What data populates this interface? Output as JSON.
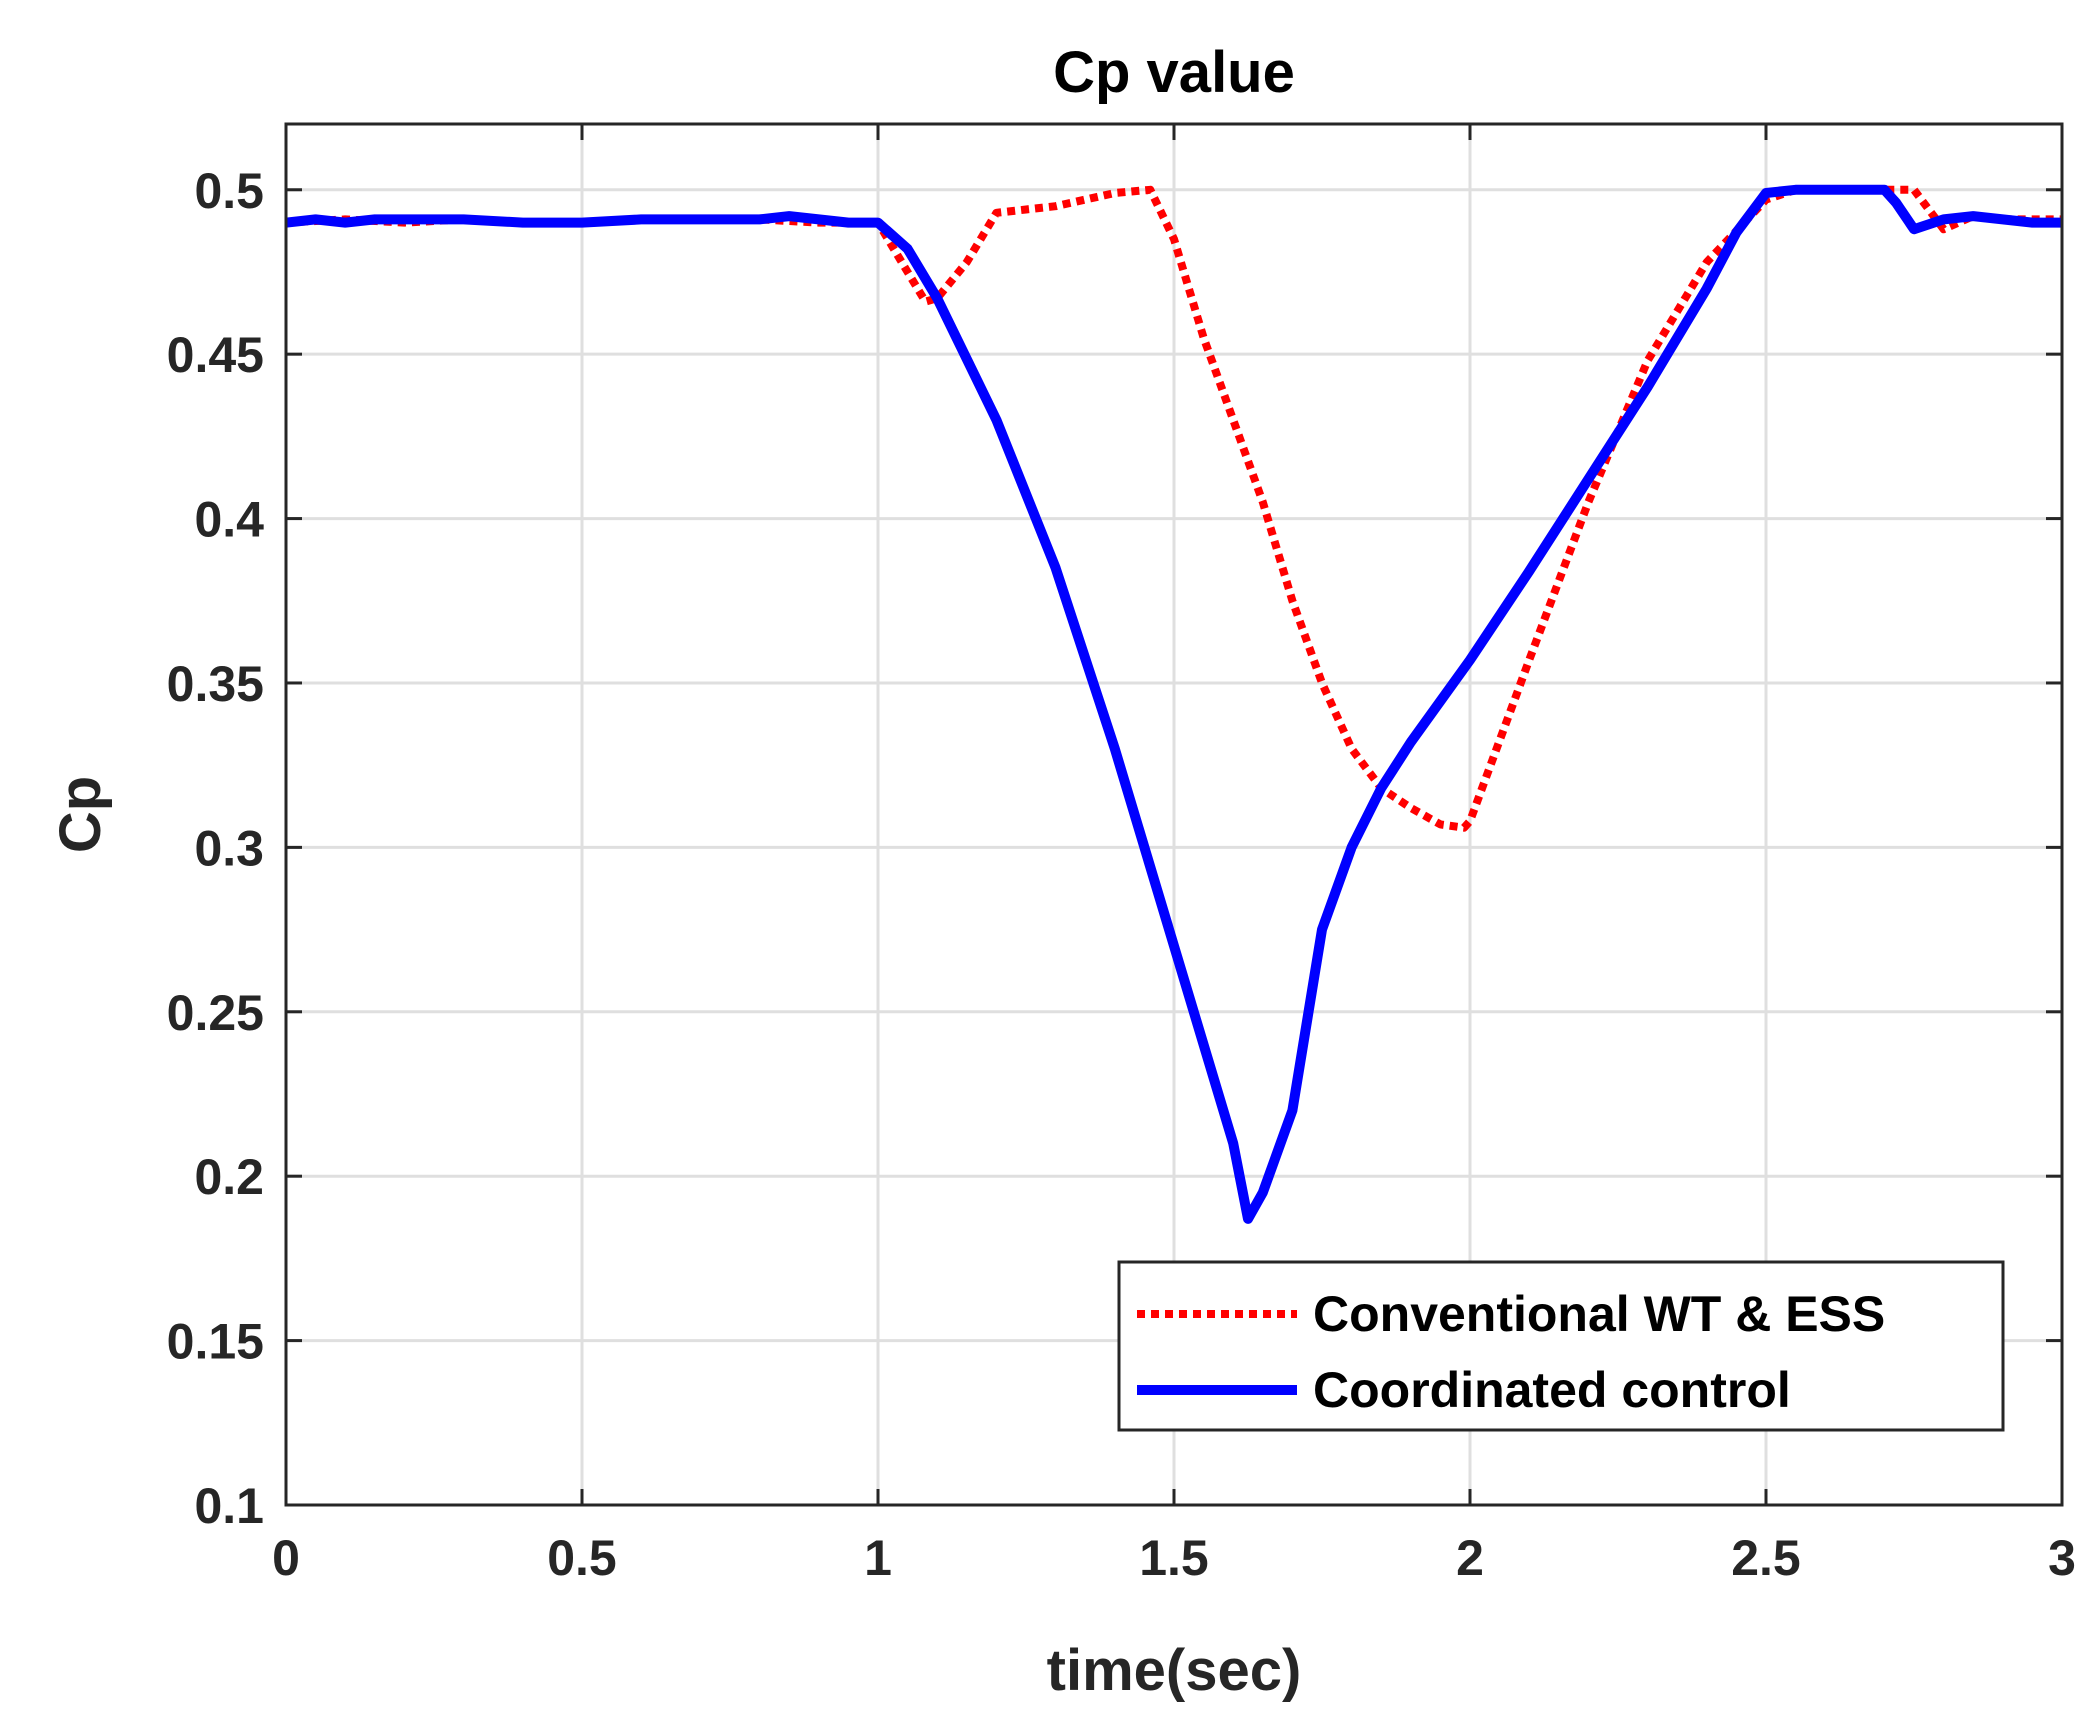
{
  "chart_data": {
    "type": "line",
    "title": "Cp value",
    "xlabel": "time(sec)",
    "ylabel": "Cp",
    "xlim": [
      0,
      3
    ],
    "ylim": [
      0.1,
      0.52
    ],
    "x_ticks": [
      0,
      0.5,
      1,
      1.5,
      2,
      2.5,
      3
    ],
    "x_tick_labels": [
      "0",
      "0.5",
      "1",
      "1.5",
      "2",
      "2.5",
      "3"
    ],
    "y_ticks": [
      0.1,
      0.15,
      0.2,
      0.25,
      0.3,
      0.35,
      0.4,
      0.45,
      0.5
    ],
    "y_tick_labels": [
      "0.1",
      "0.15",
      "0.2",
      "0.25",
      "0.3",
      "0.35",
      "0.4",
      "0.45",
      "0.5"
    ],
    "grid": true,
    "legend_position": "bottom-right",
    "series": [
      {
        "name": "Conventional WT & ESS",
        "color": "#ff0000",
        "style": "dotted",
        "x": [
          0,
          0.1,
          0.2,
          0.3,
          0.4,
          0.5,
          0.6,
          0.7,
          0.8,
          0.9,
          1.0,
          1.05,
          1.08,
          1.1,
          1.15,
          1.2,
          1.25,
          1.3,
          1.35,
          1.4,
          1.46,
          1.5,
          1.55,
          1.6,
          1.65,
          1.7,
          1.75,
          1.8,
          1.85,
          1.9,
          1.95,
          1.99,
          2.0,
          2.1,
          2.2,
          2.3,
          2.4,
          2.5,
          2.55,
          2.6,
          2.65,
          2.7,
          2.75,
          2.8,
          2.85,
          2.9,
          3.0
        ],
        "y": [
          0.49,
          0.491,
          0.49,
          0.491,
          0.49,
          0.49,
          0.491,
          0.491,
          0.491,
          0.49,
          0.49,
          0.475,
          0.466,
          0.467,
          0.478,
          0.493,
          0.494,
          0.495,
          0.497,
          0.499,
          0.5,
          0.485,
          0.455,
          0.43,
          0.405,
          0.375,
          0.35,
          0.33,
          0.318,
          0.312,
          0.307,
          0.306,
          0.308,
          0.357,
          0.405,
          0.448,
          0.478,
          0.497,
          0.5,
          0.5,
          0.5,
          0.5,
          0.5,
          0.488,
          0.492,
          0.491,
          0.491
        ]
      },
      {
        "name": "Coordinated control",
        "color": "#0000ff",
        "style": "solid",
        "x": [
          0,
          0.05,
          0.1,
          0.15,
          0.2,
          0.3,
          0.4,
          0.5,
          0.6,
          0.7,
          0.8,
          0.85,
          0.9,
          0.95,
          1.0,
          1.05,
          1.1,
          1.2,
          1.3,
          1.4,
          1.5,
          1.6,
          1.625,
          1.65,
          1.7,
          1.75,
          1.8,
          1.85,
          1.9,
          2.0,
          2.1,
          2.2,
          2.3,
          2.4,
          2.45,
          2.5,
          2.55,
          2.6,
          2.68,
          2.7,
          2.72,
          2.75,
          2.8,
          2.85,
          2.9,
          2.95,
          3.0
        ],
        "y": [
          0.49,
          0.491,
          0.49,
          0.491,
          0.491,
          0.491,
          0.49,
          0.49,
          0.491,
          0.491,
          0.491,
          0.492,
          0.491,
          0.49,
          0.49,
          0.482,
          0.467,
          0.43,
          0.385,
          0.33,
          0.27,
          0.21,
          0.187,
          0.195,
          0.22,
          0.275,
          0.3,
          0.318,
          0.332,
          0.357,
          0.384,
          0.412,
          0.44,
          0.47,
          0.487,
          0.499,
          0.5,
          0.5,
          0.5,
          0.5,
          0.496,
          0.488,
          0.491,
          0.492,
          0.491,
          0.49,
          0.49
        ]
      }
    ]
  }
}
